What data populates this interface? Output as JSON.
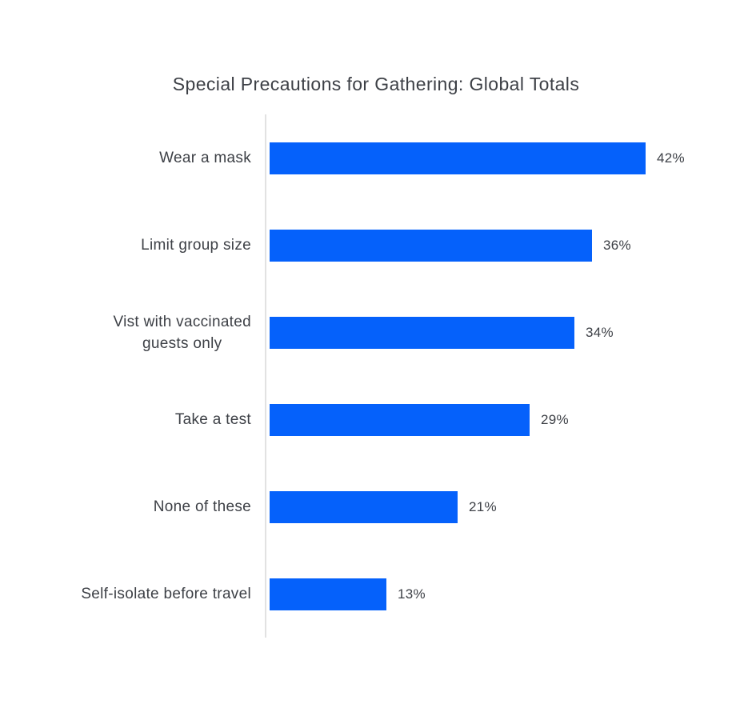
{
  "page": {
    "background": "#ffffff"
  },
  "chart_data": {
    "type": "bar",
    "orientation": "horizontal",
    "title": "Special Precautions for Gathering: Global Totals",
    "categories": [
      "Wear a mask",
      "Limit group size",
      "Vist with vaccinated\nguests only",
      "Take a test",
      "None of these",
      "Self-isolate before travel"
    ],
    "values": [
      42,
      36,
      34,
      29,
      21,
      13
    ],
    "value_labels": [
      "42%",
      "36%",
      "34%",
      "29%",
      "21%",
      "13%"
    ],
    "xlabel": "",
    "ylabel": "",
    "xlim": [
      0,
      50
    ],
    "grid": false,
    "legend": false,
    "bar_color": "#0561fb",
    "axis_line_color": "#e2e2e2",
    "text_color": "#3d4046"
  }
}
